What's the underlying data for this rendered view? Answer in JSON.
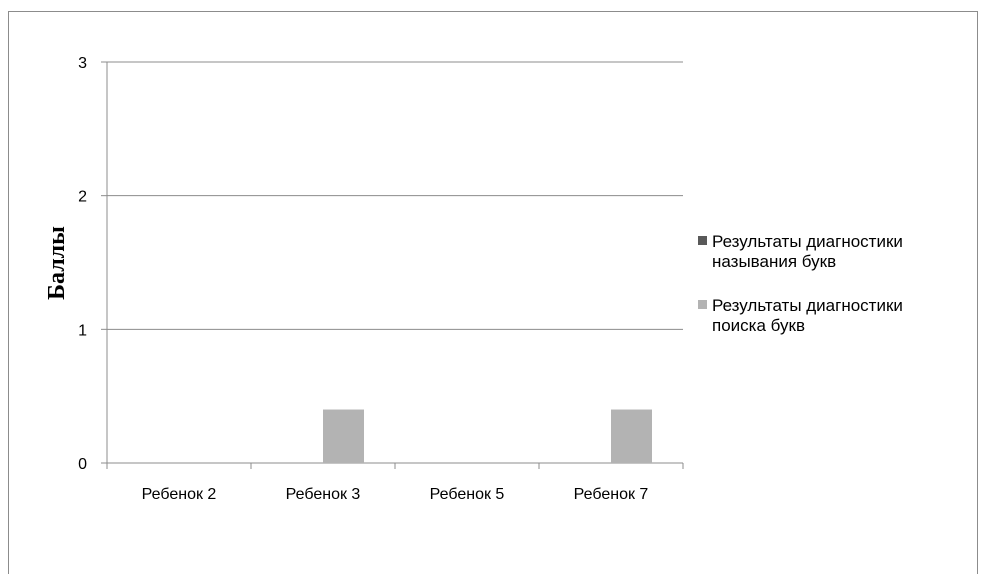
{
  "chart_data": {
    "type": "bar",
    "title": "",
    "xlabel": "",
    "ylabel": "Баллы",
    "ylim": [
      0,
      3
    ],
    "yticks": [
      0,
      1,
      2,
      3
    ],
    "grid": true,
    "legend_position": "right",
    "categories": [
      "Ребенок 2",
      "Ребенок 3",
      "Ребенок 5",
      "Ребенок 7"
    ],
    "series": [
      {
        "name_lines": [
          "Результаты диагностики",
          "называния букв"
        ],
        "color": "#595959",
        "values": [
          0,
          0,
          0,
          0
        ]
      },
      {
        "name_lines": [
          "Результаты диагностики",
          "поиска букв"
        ],
        "color": "#b3b3b3",
        "values": [
          0,
          0.4,
          0,
          0.4
        ]
      }
    ]
  }
}
